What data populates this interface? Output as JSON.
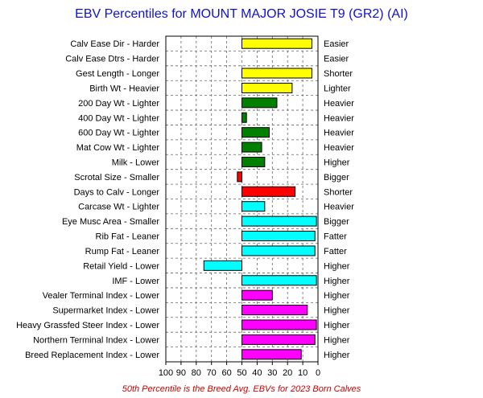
{
  "chart_data": {
    "type": "bar",
    "orientation": "horizontal",
    "title": "EBV Percentiles for MOUNT MAJOR JOSIE T9 (GR2) (AI)",
    "footnote": "50th Percentile is the Breed Avg. EBVs for 2023 Born Calves",
    "x_axis": {
      "reversed": true,
      "min": 0,
      "max": 100,
      "ticks": [
        100,
        90,
        80,
        70,
        60,
        50,
        40,
        30,
        20,
        10,
        0
      ]
    },
    "baseline": 50,
    "grid": true,
    "colors": {
      "yellow": "#ffff00",
      "green": "#007f00",
      "red": "#ff0000",
      "cyan": "#00ffff",
      "magenta": "#ff00ff"
    },
    "traits": [
      {
        "left": "Calv Ease Dir - Harder",
        "right": "Easier",
        "value": 4,
        "color": "yellow"
      },
      {
        "left": "Calv Ease Dtrs - Harder",
        "right": "Easier",
        "value": null,
        "color": "yellow"
      },
      {
        "left": "Gest Length - Longer",
        "right": "Shorter",
        "value": 4,
        "color": "yellow"
      },
      {
        "left": "Birth Wt - Heavier",
        "right": "Lighter",
        "value": 17,
        "color": "yellow"
      },
      {
        "left": "200 Day Wt - Lighter",
        "right": "Heavier",
        "value": 27,
        "color": "green"
      },
      {
        "left": "400 Day Wt - Lighter",
        "right": "Heavier",
        "value": 47,
        "color": "green"
      },
      {
        "left": "600 Day Wt - Lighter",
        "right": "Heavier",
        "value": 32,
        "color": "green"
      },
      {
        "left": "Mat Cow Wt - Lighter",
        "right": "Heavier",
        "value": 37,
        "color": "green"
      },
      {
        "left": "Milk - Lower",
        "right": "Higher",
        "value": 35,
        "color": "green"
      },
      {
        "left": "Scrotal Size - Smaller",
        "right": "Bigger",
        "value": 53,
        "color": "red"
      },
      {
        "left": "Days to Calv - Longer",
        "right": "Shorter",
        "value": 15,
        "color": "red"
      },
      {
        "left": "Carcase Wt - Lighter",
        "right": "Heavier",
        "value": 35,
        "color": "cyan"
      },
      {
        "left": "Eye Musc Area - Smaller",
        "right": "Bigger",
        "value": 1,
        "color": "cyan"
      },
      {
        "left": "Rib Fat - Leaner",
        "right": "Fatter",
        "value": 2,
        "color": "cyan"
      },
      {
        "left": "Rump Fat - Leaner",
        "right": "Fatter",
        "value": 2,
        "color": "cyan"
      },
      {
        "left": "Retail Yield - Lower",
        "right": "Higher",
        "value": 75,
        "color": "cyan"
      },
      {
        "left": "IMF - Lower",
        "right": "Higher",
        "value": 1,
        "color": "cyan"
      },
      {
        "left": "Vealer Terminal Index - Lower",
        "right": "Higher",
        "value": 30,
        "color": "magenta"
      },
      {
        "left": "Supermarket Index - Lower",
        "right": "Higher",
        "value": 7,
        "color": "magenta"
      },
      {
        "left": "Heavy Grassfed Steer Index - Lower",
        "right": "Higher",
        "value": 1,
        "color": "magenta"
      },
      {
        "left": "Northern Terminal Index - Lower",
        "right": "Higher",
        "value": 2,
        "color": "magenta"
      },
      {
        "left": "Breed Replacement Index - Lower",
        "right": "Higher",
        "value": 11,
        "color": "magenta"
      }
    ]
  }
}
